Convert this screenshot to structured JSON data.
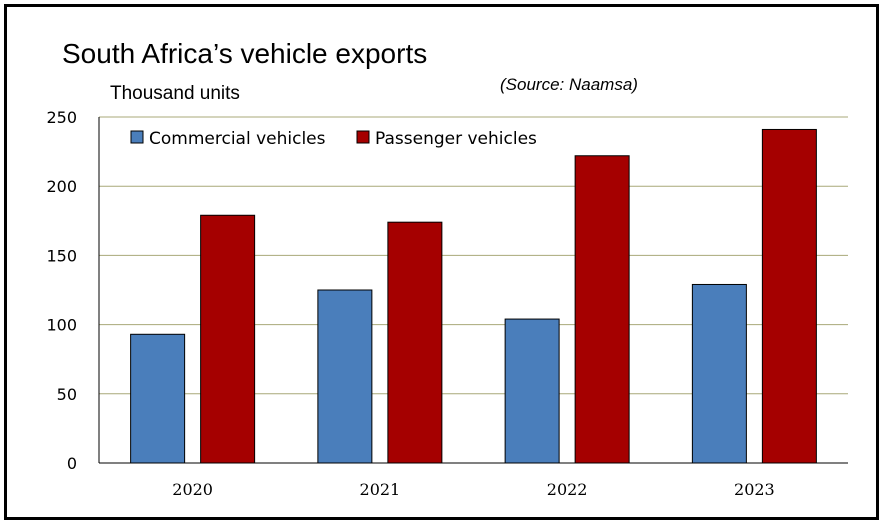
{
  "chart_data": {
    "type": "bar",
    "title": "South Africa’s vehicle exports",
    "ylabel": "Thousand units",
    "source": "(Source: Naamsa)",
    "categories": [
      "2020",
      "2021",
      "2022",
      "2023"
    ],
    "series": [
      {
        "name": "Commercial vehicles",
        "color": "#4a7ebb",
        "values": [
          93,
          125,
          104,
          129
        ]
      },
      {
        "name": "Passenger vehicles",
        "color": "#a50000",
        "values": [
          179,
          174,
          222,
          241
        ]
      }
    ],
    "ylim": [
      0,
      250
    ],
    "yticks": [
      "0",
      "50",
      "100",
      "150",
      "200",
      "250"
    ],
    "grid": true,
    "legend_position": "top-left"
  }
}
